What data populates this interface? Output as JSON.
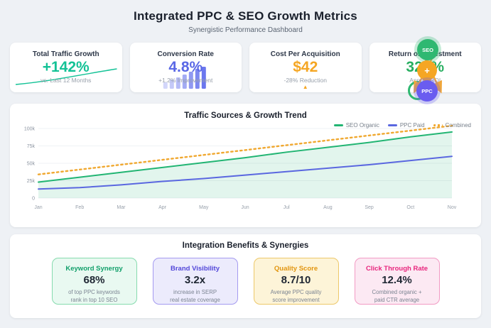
{
  "page": {
    "title": "Integrated PPC & SEO Growth Metrics",
    "subtitle": "Synergistic Performance Dashboard",
    "background": "#eef1f5"
  },
  "kpis": [
    {
      "title": "Total Traffic Growth",
      "value": "+142%",
      "subtitle": "vs. Last 12 Months",
      "accent": "#13c296"
    },
    {
      "title": "Conversion Rate",
      "value": "4.8%",
      "subtitle": "+1.2% Improvement",
      "accent": "#5a68e6"
    },
    {
      "title": "Cost Per Acquisition",
      "value": "$42",
      "subtitle": "-28% Reduction",
      "accent": "#f5a623"
    },
    {
      "title": "Return on Investment",
      "value": "324%",
      "subtitle": "Annual ROI",
      "accent": "#27ae60"
    }
  ],
  "synergy": {
    "seo_label": "SEO",
    "plus_label": "+",
    "ppc_label": "PPC",
    "seo_color": "#2fb871",
    "plus_color": "#f5a623",
    "ppc_color": "#6a5cf0",
    "arrow_color": "#f0a63a"
  },
  "chart_data": {
    "type": "area",
    "title": "Traffic Sources & Growth Trend",
    "x": [
      "Jan",
      "Feb",
      "Mar",
      "Apr",
      "May",
      "Jun",
      "Jul",
      "Aug",
      "Sep",
      "Oct",
      "Nov"
    ],
    "series": [
      {
        "name": "SEO Organic",
        "color": "#22b573",
        "style": "solid",
        "fill": true,
        "values": [
          23000,
          30000,
          37000,
          44000,
          51000,
          58000,
          66000,
          73000,
          80000,
          88000,
          95000
        ]
      },
      {
        "name": "PPC Paid",
        "color": "#5a67e0",
        "style": "solid",
        "fill": false,
        "values": [
          13000,
          15000,
          19000,
          24000,
          28000,
          33000,
          38000,
          43000,
          48000,
          54000,
          60000
        ]
      },
      {
        "name": "Combined",
        "color": "#f0a830",
        "style": "dashed",
        "fill": false,
        "values": [
          34000,
          41000,
          48000,
          55000,
          62000,
          69000,
          76000,
          83000,
          90000,
          97000,
          104000
        ]
      }
    ],
    "ylim": [
      0,
      100000
    ],
    "yticks": [
      "0",
      "25k",
      "50k",
      "75k",
      "100k"
    ],
    "xlabel": "",
    "ylabel": "",
    "grid": true,
    "legend_position": "top-right"
  },
  "benefits": {
    "title": "Integration Benefits & Synergies",
    "cards": [
      {
        "title": "Keyword Synergy",
        "value": "68%",
        "desc1": "of top PPC keywords",
        "desc2": "rank in top 10 SEO",
        "bg": "#e9f9f1",
        "border": "#86dbae",
        "title_color": "#12a06b"
      },
      {
        "title": "Brand Visibility",
        "value": "3.2x",
        "desc1": "increase in SERP",
        "desc2": "real estate coverage",
        "bg": "#ecebfc",
        "border": "#a49af0",
        "title_color": "#5246d9"
      },
      {
        "title": "Quality Score",
        "value": "8.7/10",
        "desc1": "Average PPC quality",
        "desc2": "score improvement",
        "bg": "#fdf4d8",
        "border": "#edc86a",
        "title_color": "#e2950f"
      },
      {
        "title": "Click Through Rate",
        "value": "12.4%",
        "desc1": "Combined organic +",
        "desc2": "paid CTR average",
        "bg": "#fce9f3",
        "border": "#f29bc4",
        "title_color": "#e8257d"
      }
    ]
  }
}
